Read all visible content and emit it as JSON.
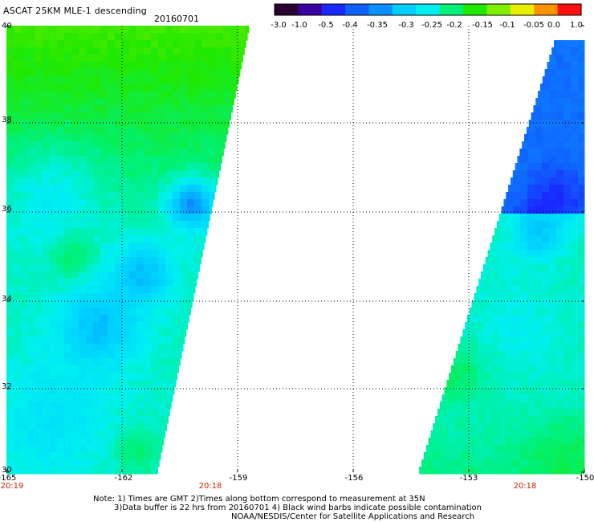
{
  "header": {
    "title": "ASCAT 25KM MLE-1 descending",
    "date": "20160701"
  },
  "colorbar": {
    "ticks": [
      "-3.0",
      "-1.0",
      "-0.5",
      "-0.4",
      "-0.35",
      "-0.3",
      "-0.25",
      "-0.2",
      "-0.15",
      "-0.1",
      "-0.05",
      "0.0",
      "1.0"
    ],
    "colors": [
      "#2a0030",
      "#3a00a0",
      "#1a28ff",
      "#1060ff",
      "#0a90ff",
      "#00cfff",
      "#00f0f0",
      "#00f07a",
      "#20e800",
      "#80f000",
      "#e8f000",
      "#ff9000",
      "#ff1010"
    ]
  },
  "map": {
    "lat_labels": [
      "40",
      "38",
      "36",
      "34",
      "32",
      "30"
    ],
    "lon_labels": [
      "-165",
      "-162",
      "-159",
      "-156",
      "-153",
      "-150"
    ],
    "time_labels": [
      "20:19",
      "20:18",
      "20:18"
    ]
  },
  "notes": {
    "line1": "Note: 1) Times are GMT 2)Times along bottom correspond to measurement at 35N",
    "line2": "3)Data buffer is 22 hrs from 20160701 4) Black wind barbs indicate possible contamination",
    "line3": "NOAA/NESDIS/Center for Satellite Applications and Research"
  }
}
